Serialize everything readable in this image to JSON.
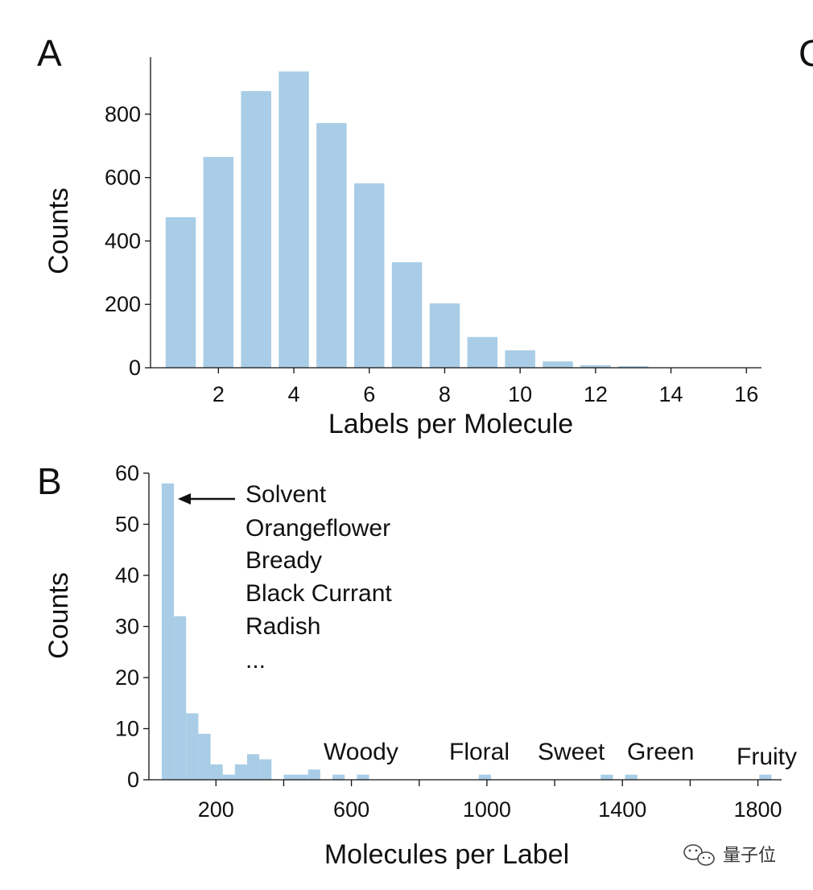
{
  "panels": {
    "a": "A",
    "b": "B",
    "c_partial": "C"
  },
  "watermark": "量子位",
  "chart_data": [
    {
      "panel": "A",
      "type": "bar",
      "xlabel": "Labels per Molecule",
      "ylabel": "Counts",
      "x": [
        1,
        2,
        3,
        4,
        5,
        6,
        7,
        8,
        9,
        10,
        11,
        12,
        13,
        14,
        15
      ],
      "values": [
        475,
        665,
        873,
        935,
        772,
        582,
        333,
        203,
        97,
        55,
        20,
        8,
        5,
        1,
        1
      ],
      "xlim": [
        0.2,
        16.4
      ],
      "ylim": [
        0,
        980
      ],
      "xticks": [
        2,
        4,
        6,
        8,
        10,
        12,
        14,
        16
      ],
      "yticks": [
        0,
        200,
        400,
        600,
        800
      ],
      "color": "#a9cde6",
      "grid": false
    },
    {
      "panel": "B",
      "type": "bar",
      "xlabel": "Molecules per Label",
      "ylabel": "Counts",
      "bin_width": 36,
      "x_start": 40,
      "values": [
        58,
        32,
        13,
        9,
        3,
        1,
        3,
        5,
        4,
        0,
        0,
        0,
        0,
        0,
        0,
        0,
        0,
        0,
        0,
        0,
        0,
        0,
        0,
        0,
        0,
        0,
        0,
        1,
        0,
        0,
        0,
        0,
        0,
        0,
        0,
        0,
        0,
        0,
        0,
        1,
        0,
        0,
        0,
        0,
        0,
        0,
        0,
        1
      ],
      "sparse_values": [
        {
          "x": 400,
          "count": 1
        },
        {
          "x": 436,
          "count": 1
        },
        {
          "x": 472,
          "count": 2
        },
        {
          "x": 544,
          "count": 1
        },
        {
          "x": 616,
          "count": 1
        },
        {
          "x": 976,
          "count": 1
        },
        {
          "x": 1336,
          "count": 1
        },
        {
          "x": 1408,
          "count": 1
        },
        {
          "x": 1804,
          "count": 1
        }
      ],
      "xlim": [
        40,
        1870
      ],
      "ylim": [
        0,
        60
      ],
      "xticks": [
        200,
        600,
        1000,
        1400,
        1800
      ],
      "xticks_minor": [
        400,
        800,
        1200,
        1600
      ],
      "yticks": [
        0,
        10,
        20,
        30,
        40,
        50,
        60
      ],
      "color": "#a9cde6",
      "grid": false,
      "annotations": {
        "list": [
          "Solvent",
          "Orangeflower",
          "Bready",
          "Black Currant",
          "Radish",
          "..."
        ],
        "peaks": [
          {
            "label": "Woody",
            "x": 600
          },
          {
            "label": "Floral",
            "x": 1000
          },
          {
            "label": "Sweet",
            "x": 1350
          },
          {
            "label": "Green",
            "x": 1450
          },
          {
            "label": "Fruity",
            "x": 1820
          }
        ]
      }
    }
  ]
}
